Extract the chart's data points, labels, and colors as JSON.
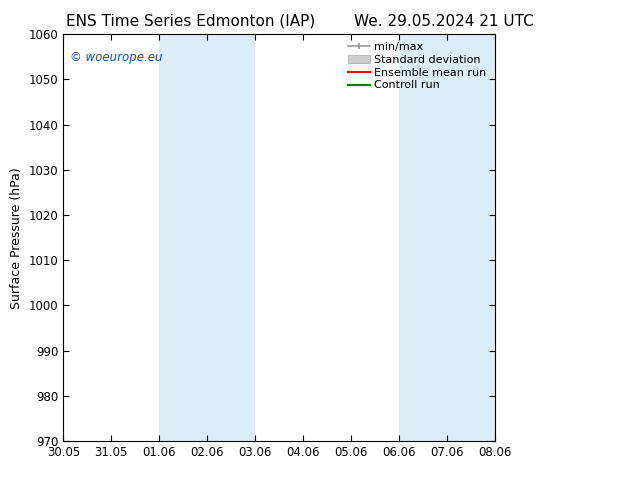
{
  "title_left": "ENS Time Series Edmonton (IAP)",
  "title_right": "We. 29.05.2024 21 UTC",
  "ylabel": "Surface Pressure (hPa)",
  "ylim": [
    970,
    1060
  ],
  "yticks": [
    970,
    980,
    990,
    1000,
    1010,
    1020,
    1030,
    1040,
    1050,
    1060
  ],
  "xtick_labels": [
    "30.05",
    "31.05",
    "01.06",
    "02.06",
    "03.06",
    "04.06",
    "05.06",
    "06.06",
    "07.06",
    "08.06"
  ],
  "watermark": "© woeurope.eu",
  "watermark_color": "#0055cc",
  "background_color": "#ffffff",
  "plot_bg_color": "#ffffff",
  "shaded_regions": [
    {
      "xstart": 2,
      "xend": 4
    },
    {
      "xstart": 7,
      "xend": 9
    }
  ],
  "shaded_color": "#daedf8",
  "legend_items": [
    {
      "label": "min/max",
      "color": "#aaaaaa",
      "lw": 1.0
    },
    {
      "label": "Standard deviation",
      "color": "#cccccc",
      "lw": 6
    },
    {
      "label": "Ensemble mean run",
      "color": "#ff0000",
      "lw": 1.5
    },
    {
      "label": "Controll run",
      "color": "#008000",
      "lw": 1.5
    }
  ],
  "title_fontsize": 11,
  "axis_fontsize": 9,
  "tick_fontsize": 8.5,
  "legend_fontsize": 8
}
